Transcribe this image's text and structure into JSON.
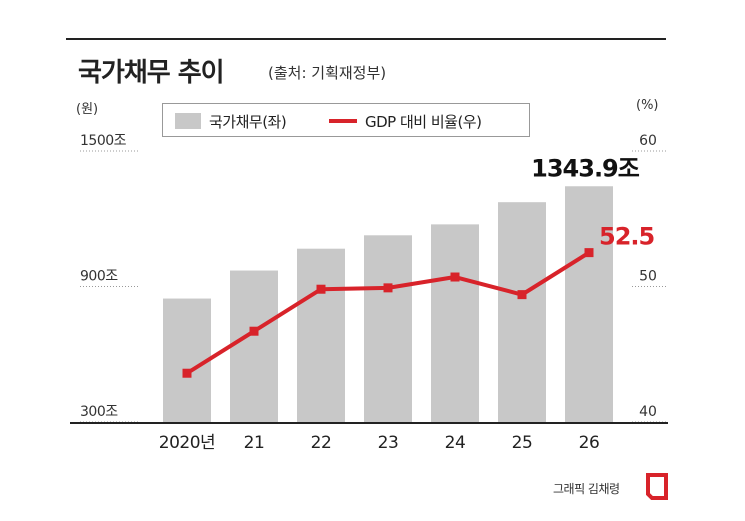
{
  "header": {
    "title": "국가채무 추이",
    "source": "(출처: 기획재정부)"
  },
  "units": {
    "left": "(원)",
    "right": "(%)"
  },
  "legend": {
    "bar_label": "국가채무(좌)",
    "line_label": "GDP 대비 비율(우)"
  },
  "credit": "그래픽 김채령",
  "colors": {
    "bar": "#c8c8c8",
    "line": "#d8232a",
    "axis": "#222222",
    "grid": "#999999"
  },
  "chart_data": {
    "type": "bar",
    "categories": [
      "2020년",
      "21",
      "22",
      "23",
      "24",
      "25",
      "26"
    ],
    "series": [
      {
        "type": "bar",
        "axis": "left",
        "values": [
          846.6,
          970.7,
          1067.4,
          1126.7,
          1175.2,
          1273.3,
          1343.9
        ]
      },
      {
        "type": "line",
        "axis": "right",
        "values": [
          43.6,
          46.7,
          49.8,
          49.9,
          50.7,
          49.4,
          52.5
        ]
      }
    ],
    "y_left": {
      "ticks": [
        300,
        900,
        1500
      ],
      "tick_labels": [
        "300조",
        "900조",
        "1500조"
      ],
      "range": [
        300,
        1500
      ]
    },
    "y_right": {
      "ticks": [
        40,
        50,
        60
      ],
      "tick_labels": [
        "40",
        "50",
        "60"
      ],
      "range": [
        40,
        60
      ]
    },
    "annotations": {
      "bar_last_label": "1343.9조",
      "line_last_label": "52.5"
    }
  }
}
